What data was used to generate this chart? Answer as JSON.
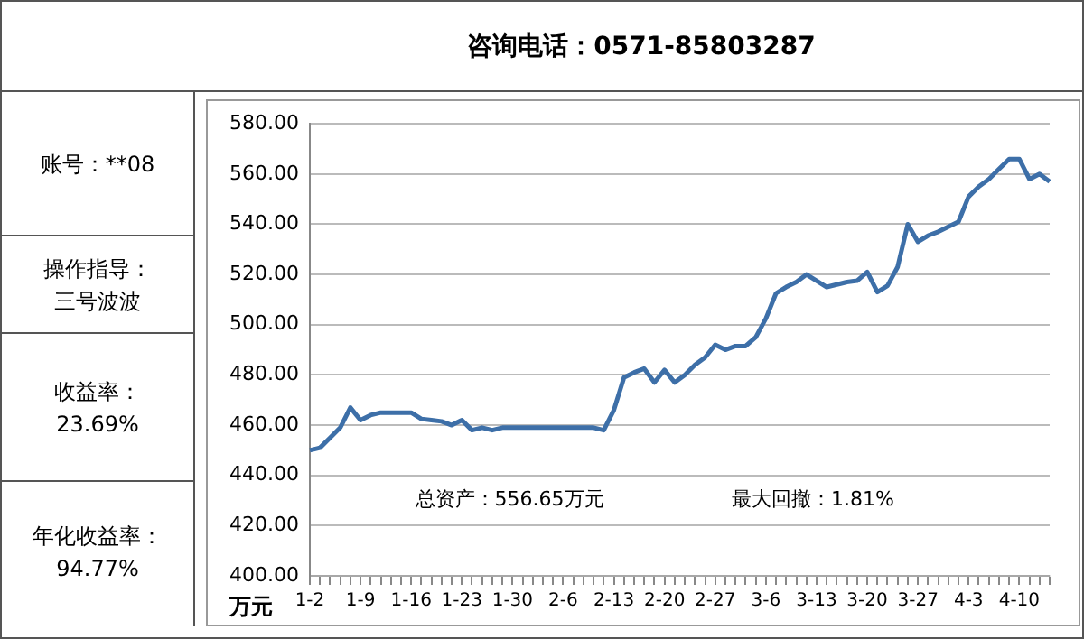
{
  "chart_data": {
    "type": "line",
    "title": "咨询电话：0571-85803287",
    "ylabel": "万元",
    "annotations": [
      "账号：**08",
      "操作指导：三号波波",
      "收益率：23.69%",
      "年化收益率：94.77%",
      "总资产：556.65万元",
      "最大回撤：1.81%"
    ],
    "categories": [
      "1-2",
      null,
      null,
      null,
      null,
      "1-9",
      null,
      null,
      null,
      null,
      "1-16",
      null,
      null,
      null,
      null,
      "1-23",
      null,
      null,
      null,
      null,
      "1-30",
      null,
      null,
      null,
      null,
      "2-6",
      null,
      null,
      null,
      null,
      "2-13",
      null,
      null,
      null,
      null,
      "2-20",
      null,
      null,
      null,
      null,
      "2-27",
      null,
      null,
      null,
      null,
      "3-6",
      null,
      null,
      null,
      null,
      "3-13",
      null,
      null,
      null,
      null,
      "3-20",
      null,
      null,
      null,
      null,
      "3-27",
      null,
      null,
      null,
      null,
      "4-3",
      null,
      null,
      null,
      null,
      "4-10",
      null,
      null,
      null
    ],
    "series": [
      {
        "color": "#3d6fa8",
        "values": [
          450,
          451,
          455,
          459,
          467,
          462,
          464,
          465,
          465,
          465,
          465,
          462.5,
          462,
          461.5,
          460,
          462,
          458,
          459,
          458,
          459,
          459,
          459,
          459,
          459,
          459,
          459,
          459,
          459,
          459,
          458,
          466,
          479,
          481,
          482.5,
          477,
          482,
          477,
          480,
          484,
          487,
          492,
          490,
          491.5,
          491.5,
          495,
          502.5,
          512.5,
          515,
          517,
          520,
          517.5,
          515,
          516,
          517,
          517.5,
          521,
          513,
          515.5,
          523,
          540,
          533,
          535.5,
          537,
          539,
          541,
          551,
          555,
          558,
          562,
          566,
          566,
          558,
          560,
          557
        ]
      }
    ],
    "ylim": [
      400,
      580
    ],
    "yticks": [
      {
        "value": 400,
        "label": "400.00"
      },
      {
        "value": 420,
        "label": "420.00"
      },
      {
        "value": 440,
        "label": "440.00"
      },
      {
        "value": 460,
        "label": "460.00"
      },
      {
        "value": 480,
        "label": "480.00"
      },
      {
        "value": 500,
        "label": "500.00"
      },
      {
        "value": 520,
        "label": "520.00"
      },
      {
        "value": 540,
        "label": "540.00"
      },
      {
        "value": 560,
        "label": "560.00"
      },
      {
        "value": 580,
        "label": "580.00"
      }
    ],
    "grid": "y",
    "marker": "none",
    "line_style": "solid"
  }
}
